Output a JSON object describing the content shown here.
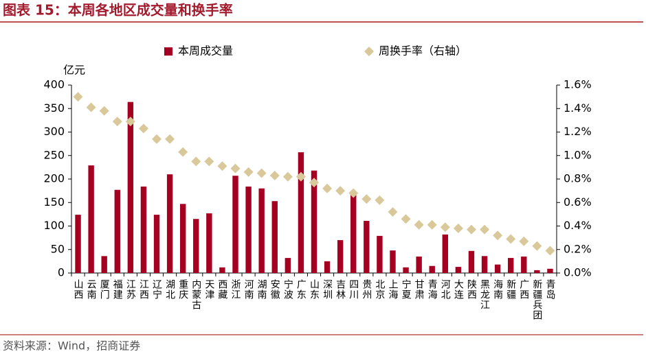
{
  "chart_data": {
    "type": "bar-line",
    "title": "图表 15：本周各地区成交量和换手率",
    "source": "资料来源：Wind，招商证券",
    "y_label": "亿元",
    "categories": [
      "山西",
      "云南",
      "厦门",
      "福建",
      "江苏",
      "江西",
      "辽宁",
      "湖北",
      "重庆",
      "内蒙古",
      "天津",
      "西藏",
      "浙江",
      "河南",
      "湖南",
      "安徽",
      "宁波",
      "广东",
      "山东",
      "深圳",
      "吉林",
      "四川",
      "贵州",
      "北京",
      "上海",
      "宁夏",
      "甘肃",
      "青海",
      "河北",
      "大连",
      "陕西",
      "黑龙江",
      "海南",
      "新疆",
      "广西",
      "新疆兵团",
      "青岛"
    ],
    "series": [
      {
        "name": "本周成交量",
        "type": "bar",
        "color": "#a50021",
        "values": [
          124,
          229,
          36,
          177,
          364,
          184,
          124,
          210,
          147,
          115,
          127,
          12,
          207,
          184,
          180,
          153,
          32,
          257,
          218,
          25,
          70,
          169,
          111,
          79,
          48,
          12,
          35,
          15,
          82,
          13,
          47,
          36,
          18,
          32,
          35,
          6,
          9
        ]
      },
      {
        "name": "周换手率（右轴）",
        "type": "scatter",
        "axis": "y2",
        "color": "#d9c89a",
        "values": [
          1.5,
          1.41,
          1.38,
          1.29,
          1.29,
          1.23,
          1.14,
          1.14,
          1.03,
          0.95,
          0.95,
          0.91,
          0.89,
          0.86,
          0.85,
          0.83,
          0.82,
          0.82,
          0.77,
          0.72,
          0.7,
          0.68,
          0.63,
          0.62,
          0.52,
          0.46,
          0.41,
          0.41,
          0.39,
          0.38,
          0.37,
          0.37,
          0.32,
          0.29,
          0.27,
          0.23,
          0.19
        ]
      }
    ],
    "ylim": [
      0,
      400
    ],
    "yticks": [
      0,
      50,
      100,
      150,
      200,
      250,
      300,
      350,
      400
    ],
    "y2lim": [
      0,
      1.6
    ],
    "y2ticks": [
      {
        "value": 0,
        "label": "0.0%"
      },
      {
        "value": 0.2,
        "label": "0.2%"
      },
      {
        "value": 0.4,
        "label": "0.4%"
      },
      {
        "value": 0.6,
        "label": "0.6%"
      },
      {
        "value": 0.8,
        "label": "0.8%"
      },
      {
        "value": 1.0,
        "label": "1.0%"
      },
      {
        "value": 1.2,
        "label": "1.2%"
      },
      {
        "value": 1.4,
        "label": "1.4%"
      },
      {
        "value": 1.6,
        "label": "1.6%"
      }
    ]
  }
}
